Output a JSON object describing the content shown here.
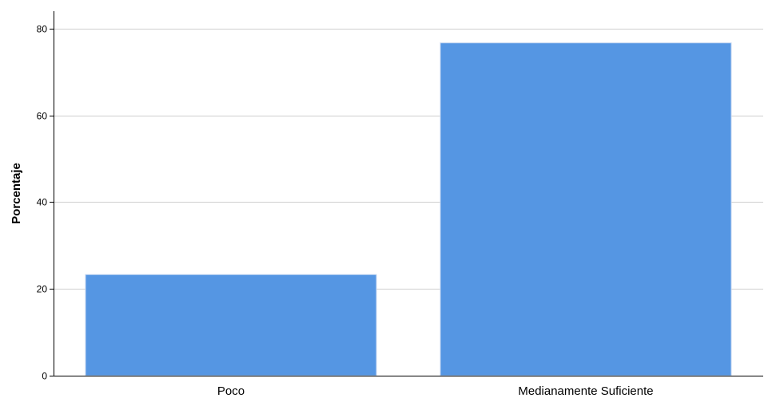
{
  "chart_data": {
    "type": "bar",
    "categories": [
      "Poco",
      "Medianamente Suficiente"
    ],
    "values": [
      23.3,
      76.7
    ],
    "title": "",
    "xlabel": "",
    "ylabel": "Porcentaje",
    "ylim": [
      0,
      84
    ],
    "yticks": [
      0,
      20,
      40,
      60,
      80
    ],
    "ytick_labels": [
      "0",
      "20",
      "40",
      "60",
      "80"
    ],
    "grid": "horizontal",
    "legend": "none",
    "colors": {
      "bar": "#5596E3",
      "bar_outline": "#C8D9F2",
      "grid": "#CFCFCF",
      "axis": "#000000"
    }
  }
}
